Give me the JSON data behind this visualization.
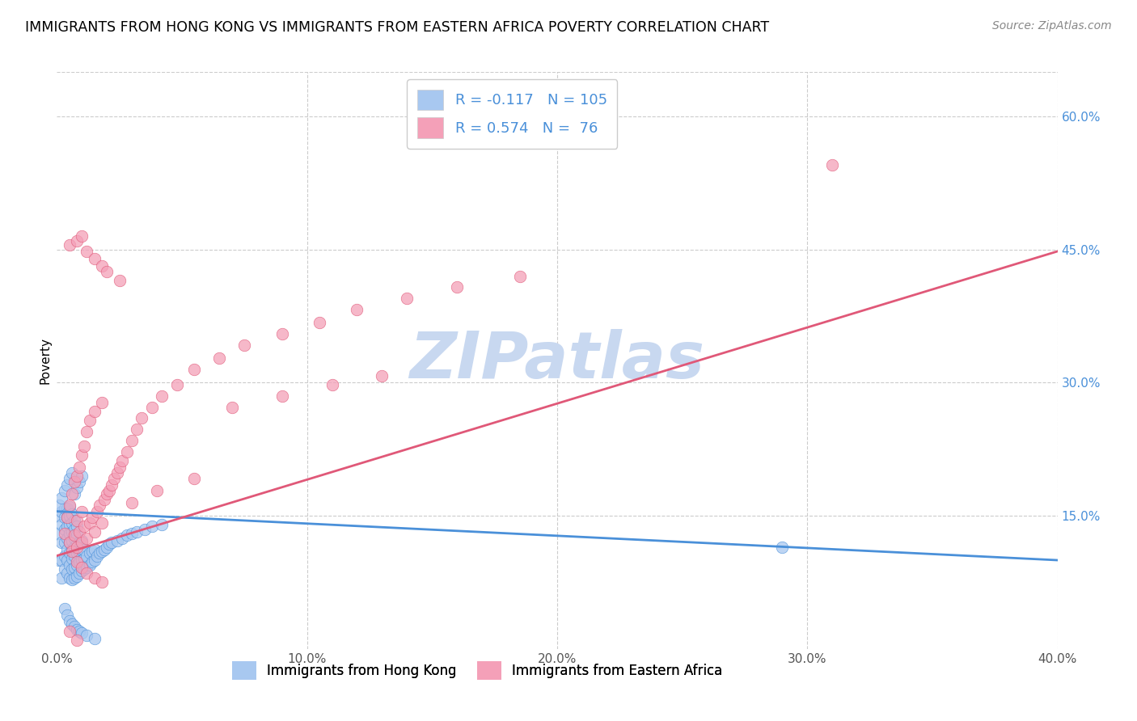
{
  "title": "IMMIGRANTS FROM HONG KONG VS IMMIGRANTS FROM EASTERN AFRICA POVERTY CORRELATION CHART",
  "source": "Source: ZipAtlas.com",
  "ylabel": "Poverty",
  "xlim": [
    0.0,
    0.4
  ],
  "ylim": [
    0.0,
    0.65
  ],
  "hk_R": -0.117,
  "hk_N": 105,
  "ea_R": 0.574,
  "ea_N": 76,
  "hk_color": "#a8c8f0",
  "ea_color": "#f4a0b8",
  "hk_line_color": "#4a90d9",
  "ea_line_color": "#e05878",
  "watermark": "ZIPatlas",
  "watermark_color": "#c8d8f0",
  "legend_label_hk": "Immigrants from Hong Kong",
  "legend_label_ea": "Immigrants from Eastern Africa",
  "hk_line_x0": 0.0,
  "hk_line_y0": 0.155,
  "hk_line_x1": 0.4,
  "hk_line_y1": 0.1,
  "ea_line_x0": 0.0,
  "ea_line_y0": 0.105,
  "ea_line_x1": 0.4,
  "ea_line_y1": 0.448,
  "hk_x": [
    0.001,
    0.001,
    0.001,
    0.002,
    0.002,
    0.002,
    0.002,
    0.002,
    0.003,
    0.003,
    0.003,
    0.003,
    0.003,
    0.003,
    0.004,
    0.004,
    0.004,
    0.004,
    0.004,
    0.004,
    0.004,
    0.005,
    0.005,
    0.005,
    0.005,
    0.005,
    0.005,
    0.005,
    0.005,
    0.006,
    0.006,
    0.006,
    0.006,
    0.006,
    0.006,
    0.006,
    0.006,
    0.007,
    0.007,
    0.007,
    0.007,
    0.007,
    0.007,
    0.007,
    0.008,
    0.008,
    0.008,
    0.008,
    0.008,
    0.008,
    0.009,
    0.009,
    0.009,
    0.009,
    0.01,
    0.01,
    0.01,
    0.01,
    0.011,
    0.011,
    0.011,
    0.012,
    0.012,
    0.013,
    0.013,
    0.014,
    0.014,
    0.015,
    0.015,
    0.016,
    0.017,
    0.018,
    0.019,
    0.02,
    0.021,
    0.022,
    0.024,
    0.026,
    0.028,
    0.03,
    0.032,
    0.035,
    0.038,
    0.042,
    0.001,
    0.002,
    0.003,
    0.004,
    0.005,
    0.006,
    0.007,
    0.008,
    0.009,
    0.01,
    0.003,
    0.004,
    0.005,
    0.006,
    0.007,
    0.008,
    0.009,
    0.29,
    0.01,
    0.012,
    0.015
  ],
  "hk_y": [
    0.1,
    0.13,
    0.15,
    0.08,
    0.1,
    0.12,
    0.14,
    0.155,
    0.09,
    0.105,
    0.12,
    0.135,
    0.148,
    0.158,
    0.085,
    0.1,
    0.112,
    0.125,
    0.138,
    0.148,
    0.158,
    0.08,
    0.095,
    0.108,
    0.12,
    0.13,
    0.14,
    0.15,
    0.16,
    0.078,
    0.09,
    0.102,
    0.112,
    0.122,
    0.132,
    0.142,
    0.152,
    0.08,
    0.092,
    0.105,
    0.115,
    0.125,
    0.135,
    0.145,
    0.082,
    0.095,
    0.108,
    0.118,
    0.128,
    0.138,
    0.085,
    0.098,
    0.11,
    0.12,
    0.088,
    0.1,
    0.112,
    0.122,
    0.09,
    0.102,
    0.112,
    0.092,
    0.105,
    0.095,
    0.108,
    0.098,
    0.11,
    0.1,
    0.112,
    0.105,
    0.108,
    0.11,
    0.112,
    0.115,
    0.118,
    0.12,
    0.122,
    0.125,
    0.128,
    0.13,
    0.132,
    0.135,
    0.138,
    0.14,
    0.162,
    0.17,
    0.178,
    0.185,
    0.192,
    0.198,
    0.175,
    0.182,
    0.188,
    0.195,
    0.045,
    0.038,
    0.032,
    0.028,
    0.025,
    0.022,
    0.02,
    0.115,
    0.018,
    0.015,
    0.012
  ],
  "ea_x": [
    0.003,
    0.004,
    0.005,
    0.005,
    0.006,
    0.006,
    0.007,
    0.007,
    0.008,
    0.008,
    0.008,
    0.009,
    0.009,
    0.01,
    0.01,
    0.01,
    0.011,
    0.011,
    0.012,
    0.012,
    0.013,
    0.013,
    0.014,
    0.015,
    0.015,
    0.016,
    0.017,
    0.018,
    0.018,
    0.019,
    0.02,
    0.021,
    0.022,
    0.023,
    0.024,
    0.025,
    0.026,
    0.028,
    0.03,
    0.032,
    0.034,
    0.038,
    0.042,
    0.048,
    0.055,
    0.065,
    0.075,
    0.09,
    0.105,
    0.12,
    0.14,
    0.16,
    0.185,
    0.005,
    0.008,
    0.01,
    0.012,
    0.015,
    0.018,
    0.02,
    0.025,
    0.008,
    0.01,
    0.012,
    0.015,
    0.018,
    0.03,
    0.04,
    0.055,
    0.07,
    0.09,
    0.11,
    0.13,
    0.31,
    0.005,
    0.008
  ],
  "ea_y": [
    0.13,
    0.148,
    0.12,
    0.162,
    0.11,
    0.175,
    0.128,
    0.188,
    0.115,
    0.145,
    0.195,
    0.132,
    0.205,
    0.12,
    0.155,
    0.218,
    0.138,
    0.228,
    0.125,
    0.245,
    0.142,
    0.258,
    0.148,
    0.132,
    0.268,
    0.155,
    0.162,
    0.142,
    0.278,
    0.168,
    0.175,
    0.178,
    0.185,
    0.192,
    0.198,
    0.205,
    0.212,
    0.222,
    0.235,
    0.248,
    0.26,
    0.272,
    0.285,
    0.298,
    0.315,
    0.328,
    0.342,
    0.355,
    0.368,
    0.382,
    0.395,
    0.408,
    0.42,
    0.455,
    0.46,
    0.465,
    0.448,
    0.44,
    0.432,
    0.425,
    0.415,
    0.098,
    0.092,
    0.085,
    0.08,
    0.075,
    0.165,
    0.178,
    0.192,
    0.272,
    0.285,
    0.298,
    0.308,
    0.545,
    0.02,
    0.01
  ]
}
